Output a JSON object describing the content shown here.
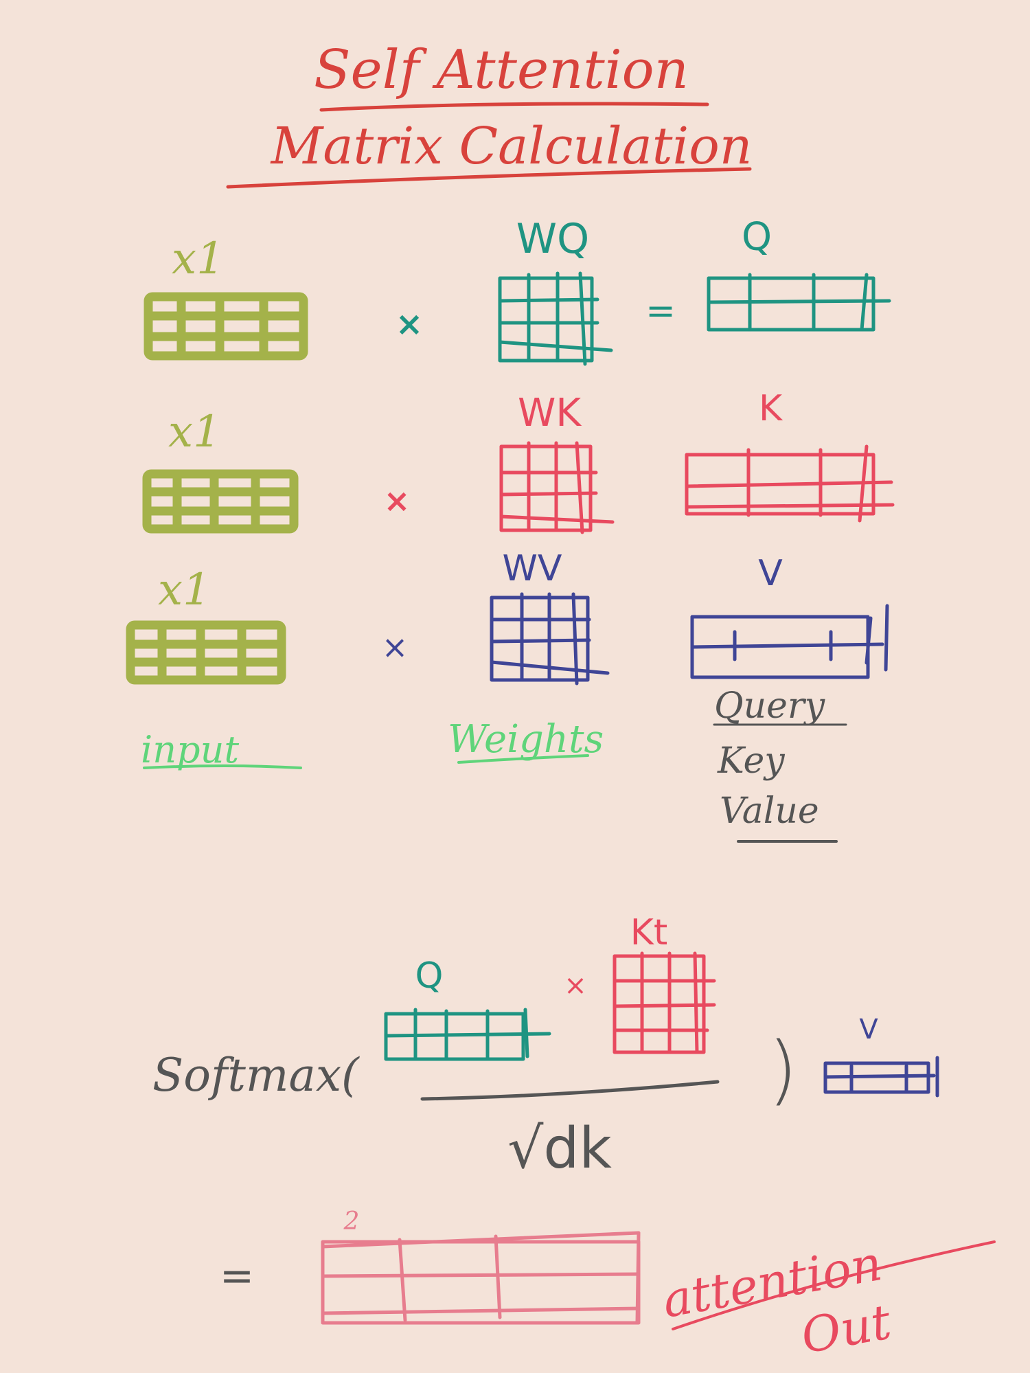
{
  "title": {
    "line1": "Self Attention",
    "line2": "Matrix Calculation"
  },
  "rows": [
    {
      "input_label": "x1",
      "op": "×",
      "weight_label": "WQ",
      "equals": "=",
      "output_label": "Q"
    },
    {
      "input_label": "x1",
      "op": "×",
      "weight_label": "WK",
      "equals": "",
      "output_label": "K"
    },
    {
      "input_label": "x1",
      "op": "×",
      "weight_label": "WV",
      "equals": "",
      "output_label": "V"
    }
  ],
  "captions": {
    "input": "input",
    "weights": "Weights"
  },
  "qkv_legend": [
    "Query",
    "Key",
    "Value"
  ],
  "formula": {
    "softmax": "Softmax(",
    "close_paren": ")",
    "q_label": "Q",
    "op": "×",
    "kt_label": "Kt",
    "denominator": "√dk",
    "v_label": "V",
    "equals": "=",
    "result_index": "2",
    "result_label_line1": "attention",
    "result_label_line2": "Out"
  },
  "colors": {
    "background": "#f4e3d9",
    "title": "#d8423c",
    "input": "#a4b24a",
    "query": "#1f9482",
    "key": "#e84a5f",
    "value": "#3f4596",
    "caption": "#5fd47a",
    "legend": "#555555",
    "formula": "#555555",
    "result": "#e77d8e"
  }
}
